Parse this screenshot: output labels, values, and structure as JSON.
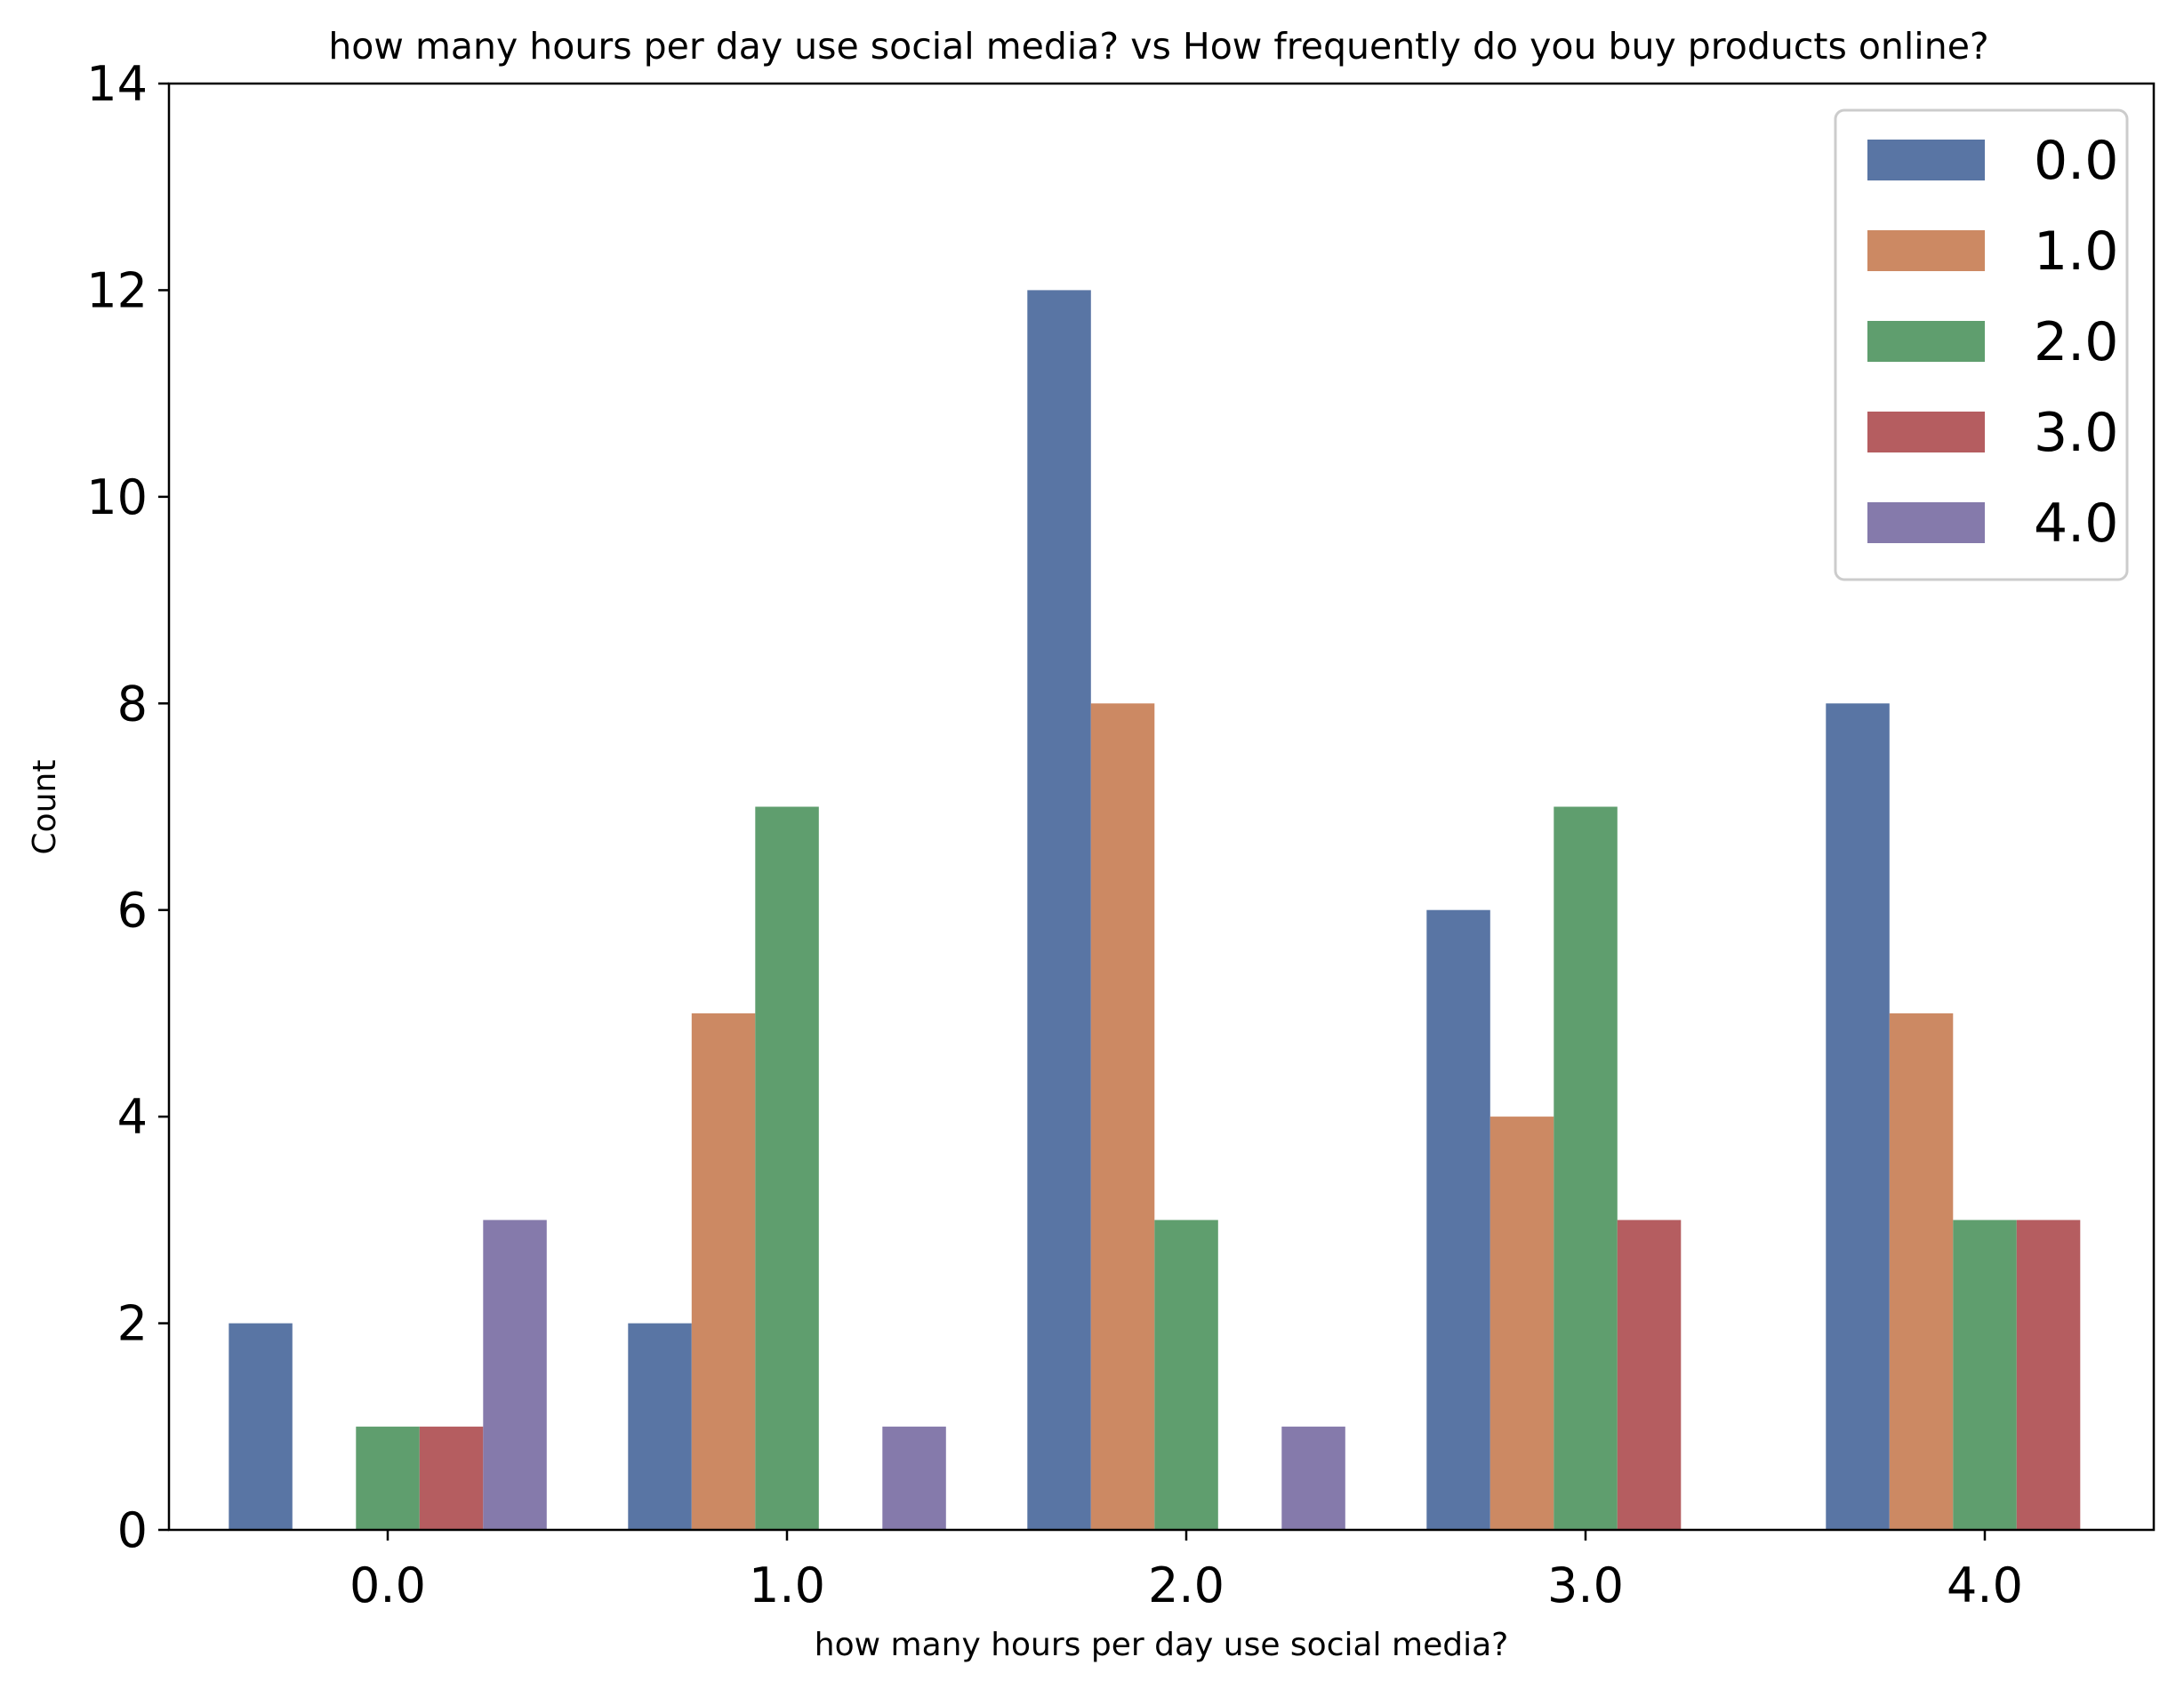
{
  "chart_data": {
    "type": "bar",
    "title": "how many hours per day use social media? vs How frequently do you buy products online?",
    "xlabel": "how many hours per day use social media?",
    "ylabel": "Count",
    "categories": [
      "0.0",
      "1.0",
      "2.0",
      "3.0",
      "4.0"
    ],
    "ylim": [
      0,
      14
    ],
    "yticks": [
      "0",
      "2",
      "4",
      "6",
      "8",
      "10",
      "12",
      "14"
    ],
    "grid": false,
    "legend_position": "top-right",
    "series": [
      {
        "name": "0.0",
        "color": "#5975a4",
        "values": [
          2,
          2,
          12,
          6,
          8
        ]
      },
      {
        "name": "1.0",
        "color": "#cc8963",
        "values": [
          0,
          5,
          8,
          4,
          5
        ]
      },
      {
        "name": "2.0",
        "color": "#5f9e6e",
        "values": [
          1,
          7,
          3,
          7,
          3
        ]
      },
      {
        "name": "3.0",
        "color": "#b55d60",
        "values": [
          1,
          0,
          0,
          3,
          3
        ]
      },
      {
        "name": "4.0",
        "color": "#857aab",
        "values": [
          3,
          1,
          1,
          0,
          0
        ]
      }
    ]
  }
}
